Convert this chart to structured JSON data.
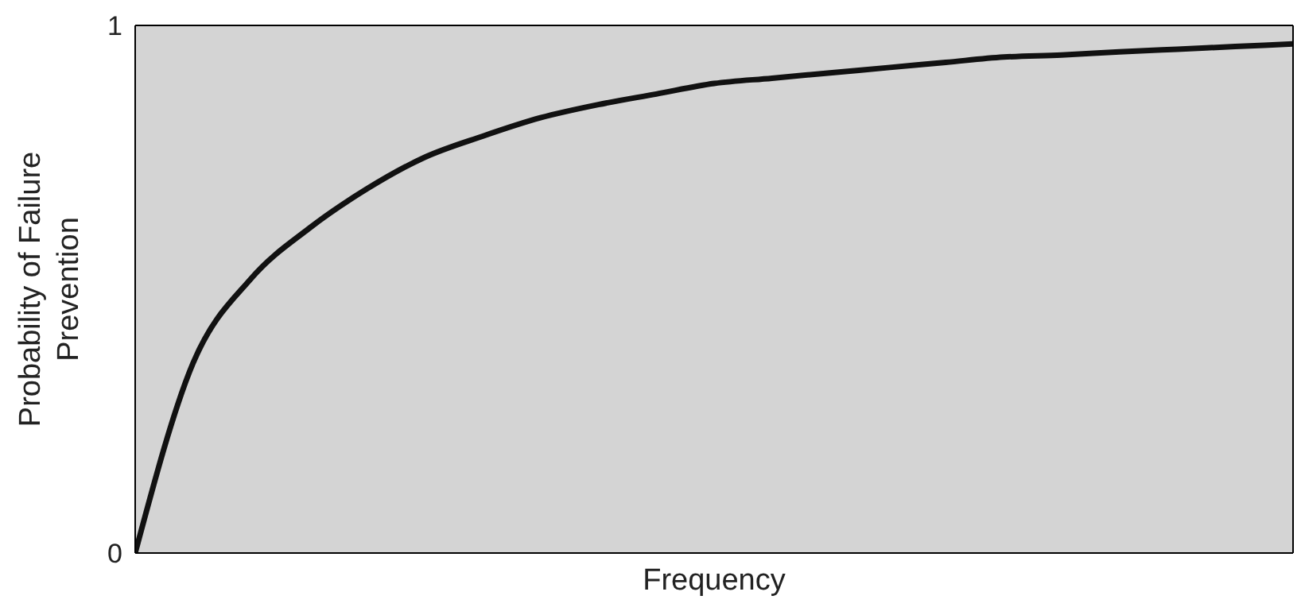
{
  "chart_data": {
    "type": "line",
    "xlabel": "Frequency",
    "ylabel": "Probability of Failure\nPrevention",
    "categories": [
      null,
      null,
      null,
      null,
      null,
      null,
      null,
      null,
      null,
      null,
      null,
      null,
      null,
      null,
      null,
      null,
      null,
      null,
      null,
      null,
      null
    ],
    "series": [
      {
        "color": "#111111",
        "values": [
          0,
          0.36,
          0.52,
          0.615,
          0.69,
          0.75,
          0.79,
          0.825,
          0.85,
          0.87,
          0.89,
          0.9,
          0.91,
          0.92,
          0.93,
          0.94,
          0.944,
          0.95,
          0.955,
          0.96,
          0.965
        ]
      }
    ],
    "ylim": [
      0,
      1
    ],
    "yticks": [
      0,
      1
    ],
    "grid": false,
    "legend": false,
    "marker": "none",
    "line_style": "solid"
  }
}
